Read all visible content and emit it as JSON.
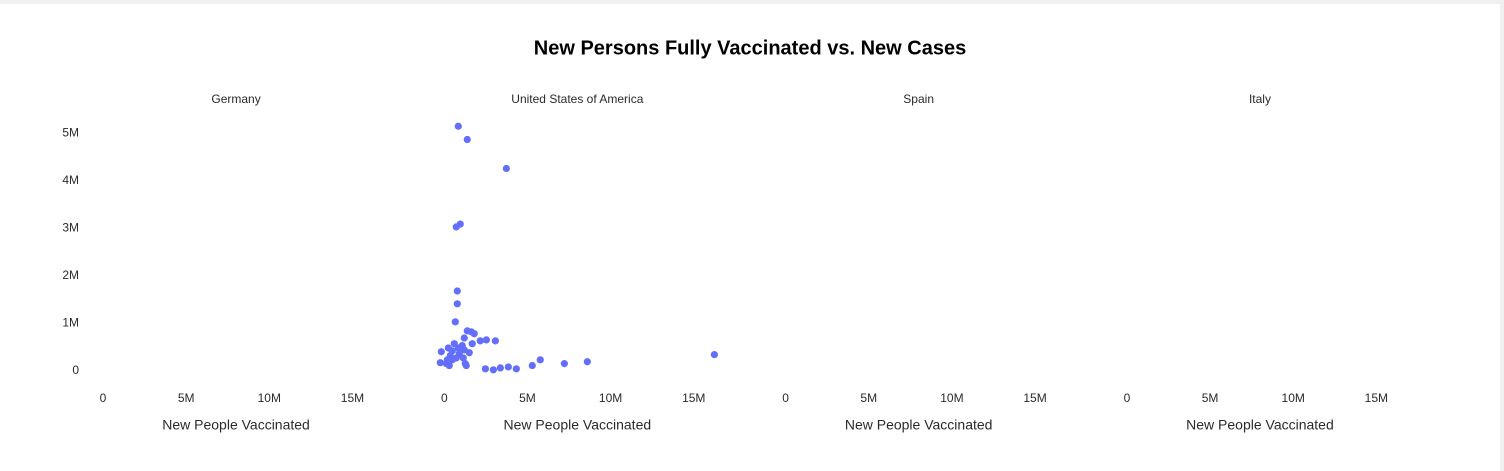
{
  "title": "New Persons Fully Vaccinated vs. New Cases",
  "chart_data": [
    {
      "type": "scatter",
      "title": "Germany",
      "x_label": "New People Vaccinated",
      "xlim": [
        -500000,
        16500000
      ],
      "xticks": [
        0,
        {
          "value": 5000000,
          "label": "5M"
        },
        {
          "value": 10000000,
          "label": "10M"
        },
        {
          "value": 15000000,
          "label": "15M"
        }
      ],
      "ylim": [
        -300000,
        5450000
      ],
      "yticks": [
        0,
        {
          "value": 1000000,
          "label": "1M"
        },
        {
          "value": 2000000,
          "label": "2M"
        },
        {
          "value": 3000000,
          "label": "3M"
        },
        {
          "value": 4000000,
          "label": "4M"
        },
        {
          "value": 5000000,
          "label": "5M"
        }
      ]
    },
    {
      "type": "scatter",
      "title": "United States of America",
      "x_label": "New People Vaccinated",
      "xlim": [
        -500000,
        16500000
      ],
      "xticks": [
        0,
        {
          "value": 5000000,
          "label": "5M"
        },
        {
          "value": 10000000,
          "label": "10M"
        },
        {
          "value": 15000000,
          "label": "15M"
        }
      ],
      "ylim": [
        -300000,
        5450000
      ],
      "series": [
        {
          "color": "#636efa",
          "x": [
            840000,
            1380000,
            3730000,
            960000,
            720000,
            780000,
            780000,
            660000,
            1380000,
            1620000,
            1800000,
            1200000,
            2160000,
            2530000,
            3070000,
            1680000,
            600000,
            840000,
            1080000,
            240000,
            -180000,
            480000,
            1200000,
            1500000,
            900000,
            360000,
            720000,
            1140000,
            180000,
            480000,
            5770000,
            8600000,
            16240000,
            -240000,
            120000,
            1260000,
            7220000,
            300000,
            1320000,
            5290000,
            3850000,
            3370000,
            2470000,
            4330000,
            2950000
          ],
          "values": [
            5150000,
            4870000,
            4260000,
            3090000,
            3030000,
            1680000,
            1410000,
            1030000,
            840000,
            820000,
            780000,
            690000,
            630000,
            650000,
            630000,
            570000,
            570000,
            480000,
            530000,
            480000,
            400000,
            420000,
            440000,
            380000,
            360000,
            320000,
            270000,
            270000,
            230000,
            230000,
            230000,
            190000,
            340000,
            170000,
            150000,
            150000,
            150000,
            110000,
            110000,
            110000,
            80000,
            60000,
            40000,
            40000,
            20000
          ]
        }
      ]
    },
    {
      "type": "scatter",
      "title": "Spain",
      "x_label": "New People Vaccinated",
      "xlim": [
        -500000,
        16500000
      ],
      "xticks": [
        0,
        {
          "value": 5000000,
          "label": "5M"
        },
        {
          "value": 10000000,
          "label": "10M"
        },
        {
          "value": 15000000,
          "label": "15M"
        }
      ],
      "ylim": [
        -300000,
        5450000
      ]
    },
    {
      "type": "scatter",
      "title": "Italy",
      "x_label": "New People Vaccinated",
      "xlim": [
        -500000,
        16500000
      ],
      "xticks": [
        0,
        {
          "value": 5000000,
          "label": "5M"
        },
        {
          "value": 10000000,
          "label": "10M"
        },
        {
          "value": 15000000,
          "label": "15M"
        }
      ],
      "ylim": [
        -300000,
        5450000
      ]
    }
  ]
}
